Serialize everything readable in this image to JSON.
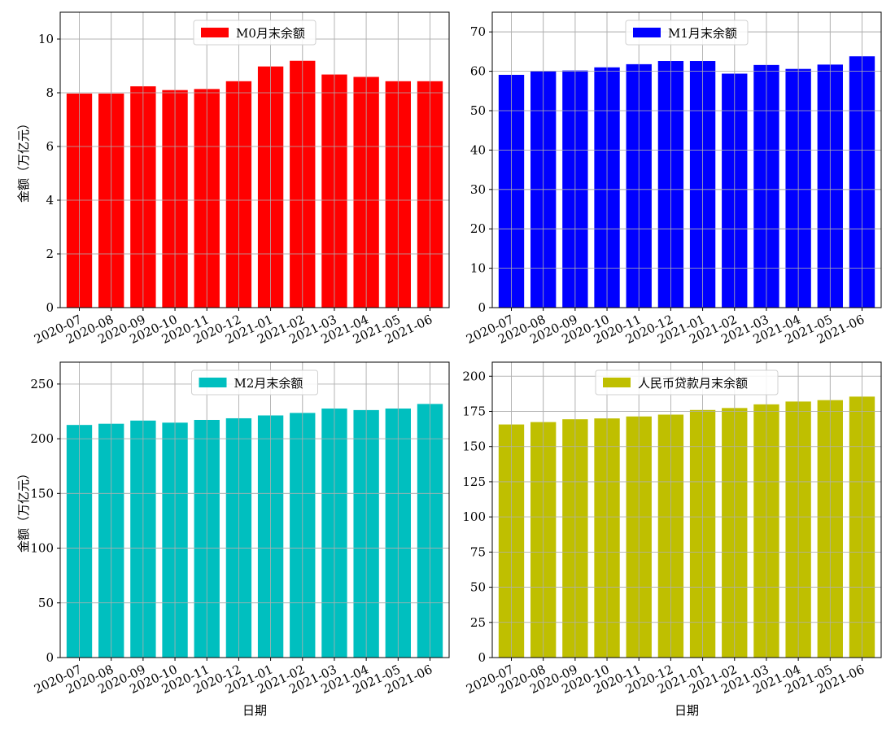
{
  "chart_data": [
    {
      "type": "bar",
      "categories": [
        "2020-07",
        "2020-08",
        "2020-09",
        "2020-10",
        "2020-11",
        "2020-12",
        "2021-01",
        "2021-02",
        "2021-03",
        "2021-04",
        "2021-05",
        "2021-06"
      ],
      "series": [
        {
          "name": "M0月末余额",
          "values": [
            7.97,
            7.97,
            8.24,
            8.1,
            8.14,
            8.43,
            8.98,
            9.19,
            8.68,
            8.59,
            8.43,
            8.43
          ]
        }
      ],
      "color": "#ff0000",
      "xlabel": "",
      "ylabel": "金额（万亿元）",
      "ylim": [
        0,
        11
      ],
      "yticks": [
        0,
        2,
        4,
        6,
        8,
        10
      ],
      "grid": true,
      "legend": "top-center"
    },
    {
      "type": "bar",
      "categories": [
        "2020-07",
        "2020-08",
        "2020-09",
        "2020-10",
        "2020-11",
        "2020-12",
        "2021-01",
        "2021-02",
        "2021-03",
        "2021-04",
        "2021-05",
        "2021-06"
      ],
      "series": [
        {
          "name": "M1月末余额",
          "values": [
            59.1,
            60.1,
            60.2,
            61.0,
            61.8,
            62.6,
            62.6,
            59.4,
            61.6,
            60.6,
            61.7,
            63.8
          ]
        }
      ],
      "color": "#0000ff",
      "xlabel": "",
      "ylabel": "",
      "ylim": [
        0,
        75
      ],
      "yticks": [
        0,
        10,
        20,
        30,
        40,
        50,
        60,
        70
      ],
      "grid": true,
      "legend": "top-center"
    },
    {
      "type": "bar",
      "categories": [
        "2020-07",
        "2020-08",
        "2020-09",
        "2020-10",
        "2020-11",
        "2020-12",
        "2021-01",
        "2021-02",
        "2021-03",
        "2021-04",
        "2021-05",
        "2021-06"
      ],
      "series": [
        {
          "name": "M2月末余额",
          "values": [
            212.6,
            213.7,
            216.6,
            214.7,
            217.2,
            218.7,
            221.3,
            223.6,
            227.6,
            226.2,
            227.6,
            231.8
          ]
        }
      ],
      "color": "#00bfbf",
      "xlabel": "日期",
      "ylabel": "金额（万亿元）",
      "ylim": [
        0,
        270
      ],
      "yticks": [
        0,
        50,
        100,
        150,
        200,
        250
      ],
      "grid": true,
      "legend": "top-center"
    },
    {
      "type": "bar",
      "categories": [
        "2020-07",
        "2020-08",
        "2020-09",
        "2020-10",
        "2020-11",
        "2020-12",
        "2021-01",
        "2021-02",
        "2021-03",
        "2021-04",
        "2021-05",
        "2021-06"
      ],
      "series": [
        {
          "name": "人民币贷款月末余额",
          "values": [
            165.7,
            167.4,
            169.4,
            170.0,
            171.4,
            172.7,
            176.0,
            177.4,
            180.0,
            182.0,
            183.0,
            185.5
          ]
        }
      ],
      "color": "#bfbf00",
      "xlabel": "日期",
      "ylabel": "",
      "ylim": [
        0,
        210
      ],
      "yticks": [
        0,
        25,
        50,
        75,
        100,
        125,
        150,
        175,
        200
      ],
      "grid": true,
      "legend": "top-center"
    }
  ]
}
